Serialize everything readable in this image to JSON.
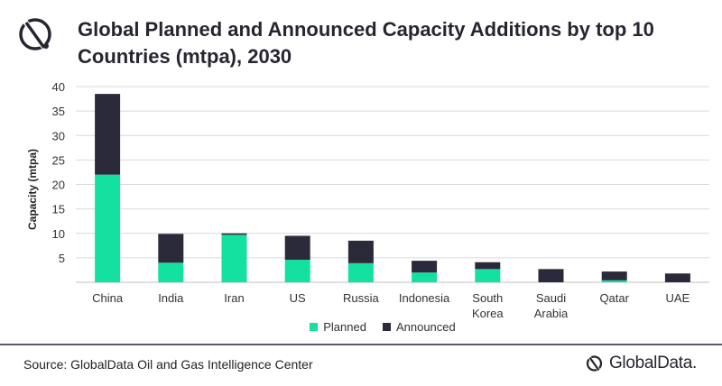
{
  "header": {
    "title": "Global Planned and Announced Capacity Additions by top 10 Countries (mtpa), 2030",
    "logo_icon": "globaldata-mark-icon"
  },
  "colors": {
    "planned": "#14e0a0",
    "announced": "#2a2a3a",
    "grid": "#d9d9d9",
    "divider": "#5a5a66"
  },
  "chart_data": {
    "type": "bar",
    "stacked": true,
    "title": "Global Planned and Announced Capacity Additions by top 10 Countries (mtpa), 2030",
    "xlabel": "",
    "ylabel": "Capacity (mtpa)",
    "ylim": [
      0,
      40
    ],
    "yticks": [
      5,
      10,
      15,
      20,
      25,
      30,
      35,
      40
    ],
    "grid": true,
    "legend_position": "bottom",
    "categories": [
      "China",
      "India",
      "Iran",
      "US",
      "Russia",
      "Indonesia",
      "South Korea",
      "Saudi Arabia",
      "Qatar",
      "UAE"
    ],
    "category_lines": [
      [
        "China"
      ],
      [
        "India"
      ],
      [
        "Iran"
      ],
      [
        "US"
      ],
      [
        "Russia"
      ],
      [
        "Indonesia"
      ],
      [
        "South",
        "Korea"
      ],
      [
        "Saudi",
        "Arabia"
      ],
      [
        "Qatar"
      ],
      [
        "UAE"
      ]
    ],
    "series": [
      {
        "name": "Planned",
        "values": [
          22.0,
          4.0,
          9.7,
          4.6,
          3.9,
          2.0,
          2.7,
          0.0,
          0.4,
          0.0
        ]
      },
      {
        "name": "Announced",
        "values": [
          16.5,
          5.9,
          0.3,
          4.9,
          4.6,
          2.4,
          1.4,
          2.7,
          1.8,
          1.8
        ]
      }
    ]
  },
  "footer": {
    "source": "Source: GlobalData Oil and Gas Intelligence Center",
    "brand": "GlobalData.",
    "brand_icon": "globaldata-mark-icon"
  }
}
